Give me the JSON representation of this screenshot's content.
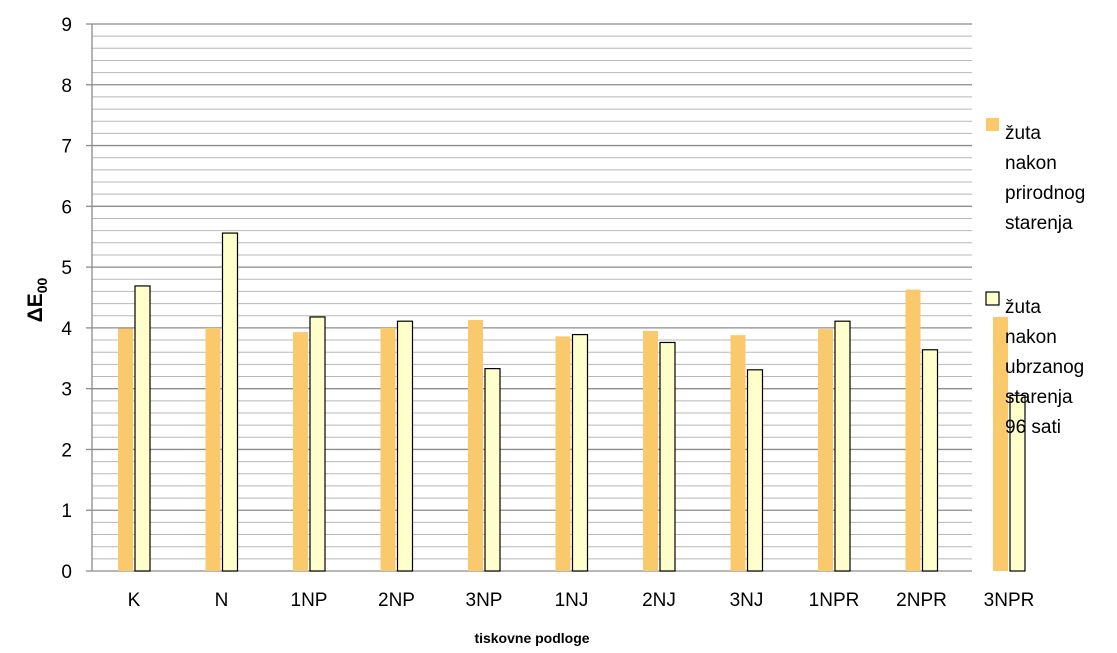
{
  "chart_data": {
    "type": "bar",
    "title": "",
    "xlabel": "tiskovne podloge",
    "ylabel": {
      "main": "ΔE",
      "sub": "00"
    },
    "ylim": [
      0,
      9
    ],
    "yticks": [
      0,
      1,
      2,
      3,
      4,
      5,
      6,
      7,
      8,
      9
    ],
    "minor_grid_step": 0.2,
    "grid": true,
    "legend_position": "right",
    "categories": [
      "K",
      "N",
      "1NP",
      "2NP",
      "3NP",
      "1NJ",
      "2NJ",
      "3NJ",
      "1NPR",
      "2NPR",
      "3NPR"
    ],
    "series": [
      {
        "name": "žuta nakon prirodnog starenja",
        "legend_lines": [
          "žuta",
          "nakon",
          "prirodnog",
          "starenja"
        ],
        "color": "#FAC96B",
        "outline": false,
        "values": [
          3.99,
          4.0,
          3.93,
          4.0,
          4.13,
          3.86,
          3.95,
          3.88,
          3.98,
          4.63,
          4.18
        ]
      },
      {
        "name": "žuta nakon ubrzanog starenja 96 sati",
        "legend_lines": [
          "žuta",
          "nakon",
          "ubrzanog",
          "starenja",
          "96 sati"
        ],
        "color": "#FFFFCC",
        "outline": true,
        "values": [
          4.69,
          5.56,
          4.18,
          4.11,
          3.33,
          3.89,
          3.76,
          3.31,
          4.11,
          3.64,
          2.89
        ]
      }
    ]
  }
}
